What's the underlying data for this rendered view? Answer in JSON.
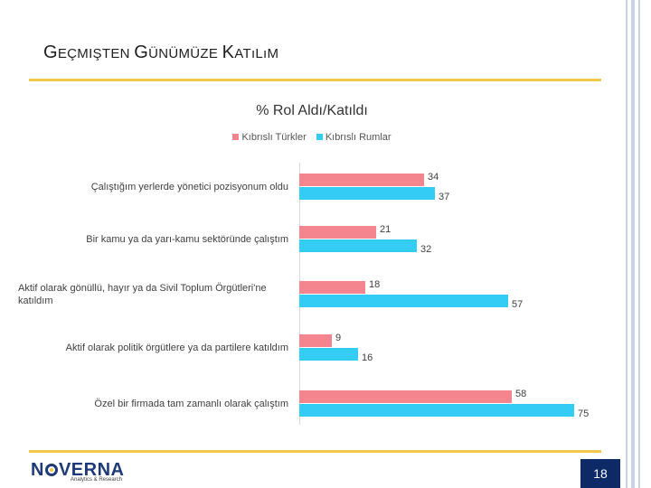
{
  "slide": {
    "title_parts": [
      "G",
      "EÇMIŞTEN ",
      "G",
      "ÜNÜMÜZE ",
      "K",
      "ATıLıM"
    ],
    "page_number": "18"
  },
  "logo": {
    "text_left": "N",
    "text_right": "VERNA",
    "tagline": "Analytics & Research"
  },
  "chart_data": {
    "type": "bar",
    "orientation": "horizontal",
    "title": "% Rol Aldı/Katıldı",
    "legend_position": "top",
    "categories": [
      "Çalıştığım yerlerde yönetici pozisyonum oldu",
      "Bir kamu ya da yarı-kamu sektöründe çalıştım",
      "Aktif olarak gönüllü, hayır ya da Sivil Toplum Örgütleri'ne katıldım",
      "Aktif olarak politik örgütlere ya da partilere katıldım",
      "Özel bir firmada tam zamanlı olarak çalıştım"
    ],
    "series": [
      {
        "name": "Kıbrıslı Türkler",
        "values": [
          34,
          21,
          18,
          9,
          58
        ],
        "color": "#f4858e"
      },
      {
        "name": "Kıbrıslı Rumlar",
        "values": [
          37,
          32,
          57,
          16,
          75
        ],
        "color": "#33ccf5"
      }
    ],
    "xlim": [
      0,
      75
    ],
    "grid": false
  }
}
